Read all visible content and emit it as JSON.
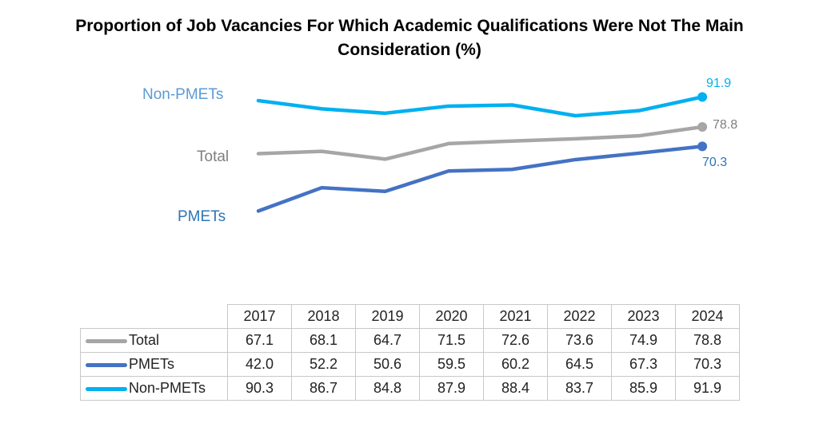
{
  "title_line1": "Proportion of Job Vacancies For Which Academic Qualifications Were Not The Main",
  "title_line2": "Consideration (%)",
  "chart_data": {
    "type": "line",
    "title": "Proportion of Job Vacancies For Which Academic Qualifications Were Not The Main Consideration (%)",
    "categories": [
      "2017",
      "2018",
      "2019",
      "2020",
      "2021",
      "2022",
      "2023",
      "2024"
    ],
    "series": [
      {
        "name": "Total",
        "color": "#a6a6a6",
        "label_color": "#7f7f7f",
        "values": [
          67.1,
          68.1,
          64.7,
          71.5,
          72.6,
          73.6,
          74.9,
          78.8
        ]
      },
      {
        "name": "PMETs",
        "color": "#4472c4",
        "label_color": "#2e75b6",
        "values": [
          42.0,
          52.2,
          50.6,
          59.5,
          60.2,
          64.5,
          67.3,
          70.3
        ]
      },
      {
        "name": "Non-PMETs",
        "color": "#00b0f0",
        "label_color": "#5b9bd5",
        "values": [
          90.3,
          86.7,
          84.8,
          87.9,
          88.4,
          83.7,
          85.9,
          91.9
        ]
      }
    ],
    "end_labels": [
      "78.8",
      "70.3",
      "91.9"
    ],
    "legend": "table below chart",
    "grid": false
  },
  "table": {
    "rows": [
      {
        "name": "Total",
        "cells": [
          "67.1",
          "68.1",
          "64.7",
          "71.5",
          "72.6",
          "73.6",
          "74.9",
          "78.8"
        ]
      },
      {
        "name": "PMETs",
        "cells": [
          "42.0",
          "52.2",
          "50.6",
          "59.5",
          "60.2",
          "64.5",
          "67.3",
          "70.3"
        ]
      },
      {
        "name": "Non-PMETs",
        "cells": [
          "90.3",
          "86.7",
          "84.8",
          "87.9",
          "88.4",
          "83.7",
          "85.9",
          "91.9"
        ]
      }
    ]
  }
}
